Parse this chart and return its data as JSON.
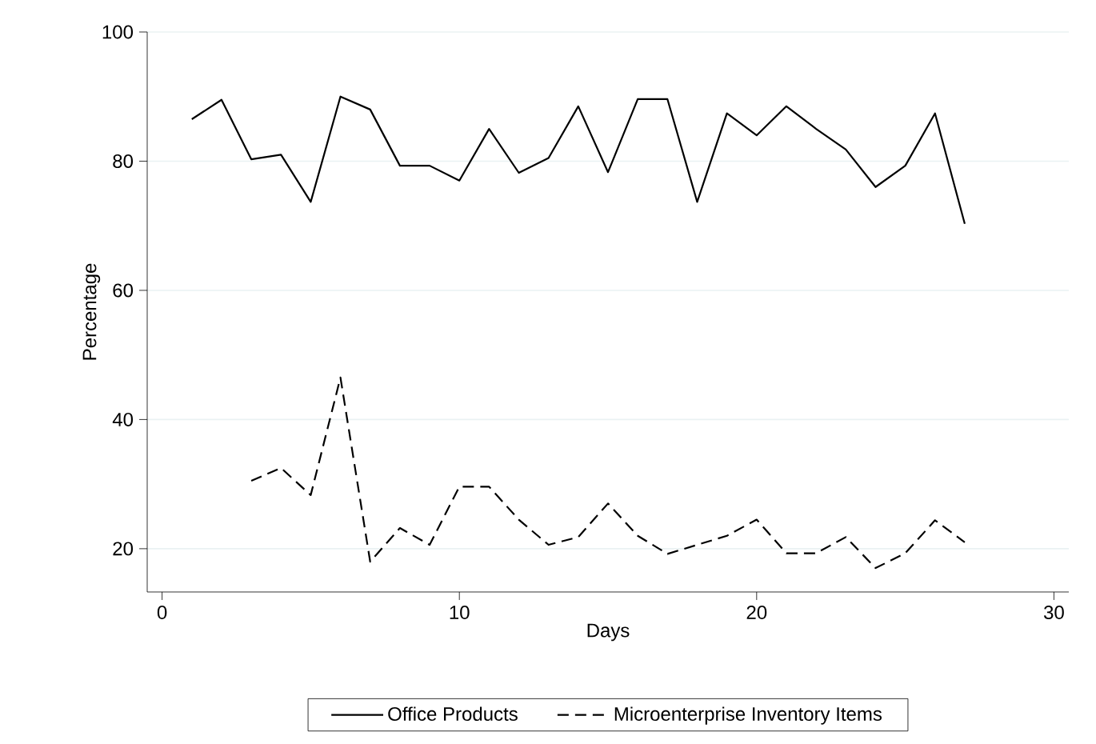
{
  "chart_data": {
    "type": "line",
    "xlabel": "Days",
    "ylabel": "Percentage",
    "xlim": [
      -0.5,
      30.5
    ],
    "ylim": [
      13.3,
      100
    ],
    "xticks": [
      0,
      10,
      20,
      30
    ],
    "yticks": [
      20,
      40,
      60,
      80,
      100
    ],
    "grid": "y",
    "legend": "bottom",
    "series": [
      {
        "name": "Office Products",
        "color": "#000000",
        "line_style": "solid",
        "x": [
          1,
          2,
          3,
          4,
          5,
          6,
          7,
          8,
          9,
          10,
          11,
          12,
          13,
          14,
          15,
          16,
          17,
          18,
          19,
          20,
          21,
          22,
          23,
          24,
          25,
          26,
          27
        ],
        "values": [
          86.5,
          89.5,
          80.3,
          81,
          73.7,
          90,
          88,
          79.3,
          79.3,
          77,
          85,
          78.2,
          80.5,
          88.5,
          78.3,
          89.6,
          89.6,
          73.7,
          87.4,
          84,
          88.5,
          85,
          81.8,
          76,
          79.3,
          87.4,
          70.3
        ]
      },
      {
        "name": "Microenterprise Inventory Items",
        "color": "#000000",
        "line_style": "dashed",
        "x": [
          3,
          4,
          5,
          6,
          7,
          8,
          9,
          10,
          11,
          12,
          13,
          14,
          15,
          16,
          17,
          18,
          19,
          20,
          21,
          22,
          23,
          24,
          25,
          26,
          27
        ],
        "values": [
          30.5,
          32.5,
          28.3,
          46.5,
          18,
          23.2,
          20.6,
          29.6,
          29.6,
          24.5,
          20.6,
          21.8,
          27,
          22,
          19.2,
          20.6,
          22,
          24.5,
          19.3,
          19.3,
          21.8,
          17,
          19.3,
          24.4,
          21
        ]
      }
    ]
  }
}
